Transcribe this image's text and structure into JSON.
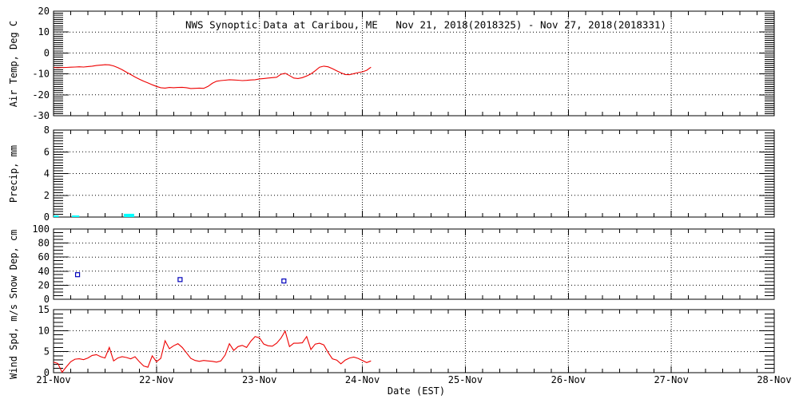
{
  "window": {
    "background": "#ffffff"
  },
  "chart_data": {
    "type": "line",
    "title": "NWS Synoptic Data at Caribou, ME   Nov 21, 2018(2018325) - Nov 27, 2018(2018331)",
    "xlabel": "Date (EST)",
    "x_tick_labels": [
      "21-Nov",
      "22-Nov",
      "23-Nov",
      "24-Nov",
      "25-Nov",
      "26-Nov",
      "27-Nov",
      "28-Nov"
    ],
    "x_range_days": 7,
    "grid": "dotted",
    "frame_color": "#000000",
    "panels": [
      {
        "type": "line",
        "ylabel": "Air Temp, Deg C",
        "ylim": [
          -30,
          20
        ],
        "yticks": [
          20,
          10,
          0,
          -10,
          -20,
          -30
        ],
        "minor_step": 1,
        "line_color": "#ee0000",
        "start_hour": 0,
        "step_hours": 1,
        "values": [
          -7.0,
          -7.1,
          -7.0,
          -6.9,
          -6.8,
          -6.7,
          -6.6,
          -6.7,
          -6.5,
          -6.3,
          -6.0,
          -5.8,
          -5.6,
          -5.7,
          -6.2,
          -7.0,
          -8.0,
          -9.2,
          -10.3,
          -11.5,
          -12.5,
          -13.5,
          -14.3,
          -15.2,
          -16.0,
          -16.6,
          -16.8,
          -16.5,
          -16.6,
          -16.5,
          -16.4,
          -16.6,
          -17.0,
          -16.9,
          -16.8,
          -16.9,
          -16.0,
          -14.5,
          -13.5,
          -13.2,
          -13.0,
          -12.8,
          -12.9,
          -13.0,
          -13.2,
          -13.1,
          -12.9,
          -12.8,
          -12.4,
          -12.2,
          -12.0,
          -11.8,
          -11.6,
          -10.2,
          -9.7,
          -10.8,
          -12.0,
          -12.2,
          -11.8,
          -11.0,
          -10.0,
          -8.5,
          -6.8,
          -6.3,
          -6.6,
          -7.5,
          -8.5,
          -9.5,
          -10.3,
          -10.4,
          -9.9,
          -9.4,
          -9.0,
          -8.3,
          -6.8
        ]
      },
      {
        "type": "bar",
        "ylabel": "Precip, mm",
        "ylim": [
          0,
          8
        ],
        "yticks": [
          8,
          6,
          4,
          2,
          0
        ],
        "minor_step": 0.25,
        "bar_color": "#00ffff",
        "bars": [
          {
            "start_hour": 0.0,
            "end_hour": 1.2,
            "value": 0.15
          },
          {
            "start_hour": 4.3,
            "end_hour": 6.0,
            "value": 0.1
          },
          {
            "start_hour": 16.4,
            "end_hour": 18.8,
            "value": 0.3
          }
        ]
      },
      {
        "type": "scatter",
        "ylabel": "Snow Dep, cm",
        "ylim": [
          0,
          100
        ],
        "yticks": [
          100,
          80,
          60,
          40,
          20,
          0
        ],
        "minor_step": 5,
        "marker": "open-square",
        "marker_color": "#0000bb",
        "points": [
          {
            "hour": 5.6,
            "value": 35
          },
          {
            "hour": 29.5,
            "value": 28
          },
          {
            "hour": 53.7,
            "value": 26
          }
        ]
      },
      {
        "type": "line",
        "ylabel": "Wind Spd, m/s",
        "ylim": [
          0,
          15
        ],
        "yticks": [
          15,
          10,
          5,
          0
        ],
        "minor_step": 1,
        "line_color": "#ee0000",
        "start_hour": 0,
        "step_hours": 1,
        "values": [
          2.5,
          2.2,
          0.1,
          1.4,
          2.6,
          3.2,
          3.3,
          3.1,
          3.5,
          4.1,
          4.3,
          3.8,
          3.5,
          6.0,
          2.8,
          3.5,
          3.8,
          3.6,
          3.3,
          3.8,
          2.6,
          1.6,
          1.3,
          4.0,
          2.6,
          3.4,
          7.6,
          5.7,
          6.4,
          6.9,
          6.0,
          4.7,
          3.4,
          2.9,
          2.7,
          2.9,
          2.8,
          2.7,
          2.5,
          2.8,
          4.2,
          6.9,
          5.3,
          6.2,
          6.5,
          6.0,
          7.5,
          8.6,
          8.3,
          6.8,
          6.4,
          6.3,
          7.0,
          8.2,
          9.9,
          6.2,
          7.0,
          7.0,
          7.1,
          8.6,
          5.5,
          6.8,
          7.0,
          6.6,
          4.8,
          3.3,
          3.0,
          2.1,
          3.0,
          3.5,
          3.7,
          3.4,
          2.9,
          2.4,
          2.8
        ]
      }
    ]
  }
}
